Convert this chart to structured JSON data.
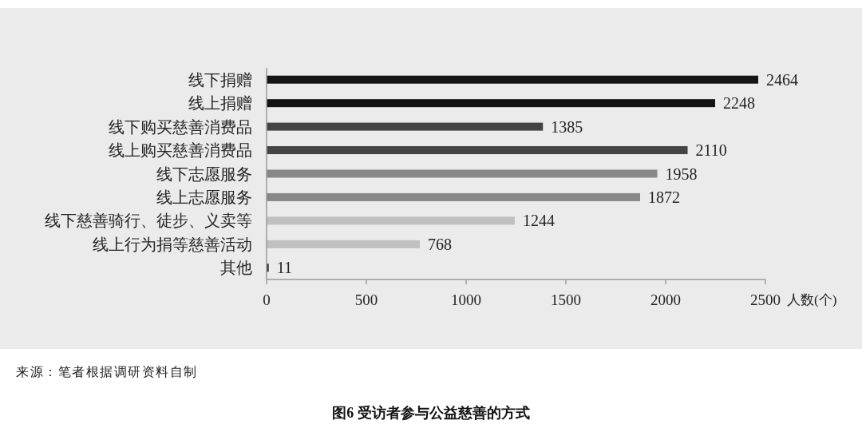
{
  "chart_data": {
    "type": "bar",
    "orientation": "horizontal",
    "title": "图6 受访者参与公益慈善的方式",
    "xlabel": "人数(个)",
    "categories": [
      "线下捐赠",
      "线上捐赠",
      "线下购买慈善消费品",
      "线上购买慈善消费品",
      "线下志愿服务",
      "线上志愿服务",
      "线下慈善骑行、徒步、义卖等",
      "线上行为捐等慈善活动",
      "其他"
    ],
    "values": [
      2464,
      2248,
      1385,
      2110,
      1958,
      1872,
      1244,
      768,
      11
    ],
    "colors": [
      "#141414",
      "#141414",
      "#444444",
      "#444444",
      "#888888",
      "#888888",
      "#c0c0c0",
      "#c0c0c0",
      "#333333"
    ],
    "xlim": [
      0,
      2500
    ],
    "xticks": [
      0,
      500,
      1000,
      1500,
      2000,
      2500
    ],
    "data_labels": true,
    "annotations": [
      "来源：笔者根据调研资料自制"
    ]
  }
}
